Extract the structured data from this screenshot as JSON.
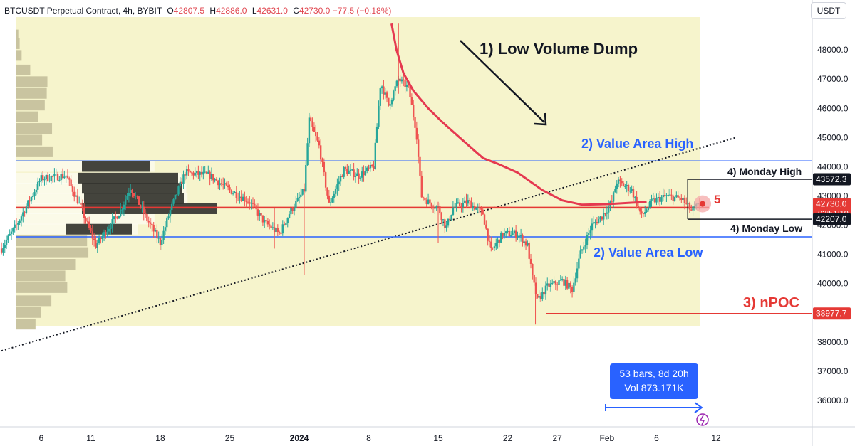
{
  "header": {
    "symbol": "BTCUSDT Perpetual Contract, 4h, BYBIT",
    "open_label": "O",
    "open": "42807.5",
    "high_label": "H",
    "high": "42886.0",
    "low_label": "L",
    "low": "42631.0",
    "close_label": "C",
    "close": "42730.0",
    "change": "−77.5 (−0.18%)"
  },
  "currency": "USDT",
  "colors": {
    "zone": "#f6f4cc",
    "value_area": "#2962ff",
    "poc": "#e53935",
    "vwap": "#e53950",
    "up_candle": "#26a69a",
    "down_candle": "#ef5350",
    "profile_light": "#c9c4a0",
    "profile_dark": "#2a2a24"
  },
  "price_axis": {
    "ticks": [
      "48000.0",
      "47000.0",
      "46000.0",
      "45000.0",
      "44000.0",
      "43000.0",
      "42000.0",
      "41000.0",
      "40000.0",
      "39000.0",
      "38000.0",
      "37000.0",
      "36000.0"
    ],
    "labels": [
      {
        "text": "43572.3",
        "value": 43572.3,
        "style": "dark"
      },
      {
        "text": "42730.0",
        "value": 42730.0,
        "style": "red",
        "sub": "02:51:19"
      },
      {
        "text": "42207.0",
        "value": 42207.0,
        "style": "dark"
      },
      {
        "text": "38977.7",
        "value": 38977.7,
        "style": "red"
      }
    ]
  },
  "time_axis": {
    "ticks": [
      {
        "label": "6",
        "day": -26
      },
      {
        "label": "11",
        "day": -21
      },
      {
        "label": "18",
        "day": -14
      },
      {
        "label": "25",
        "day": -7
      },
      {
        "label": "2024",
        "day": 0
      },
      {
        "label": "8",
        "day": 7
      },
      {
        "label": "15",
        "day": 14
      },
      {
        "label": "22",
        "day": 21
      },
      {
        "label": "27",
        "day": 26
      },
      {
        "label": "Feb",
        "day": 31
      },
      {
        "label": "6",
        "day": 36
      },
      {
        "label": "12",
        "day": 42
      }
    ]
  },
  "annotations": {
    "low_volume_dump": "1) Low Volume Dump",
    "value_area_high": "2) Value Area High",
    "value_area_low": "2) Value Area Low",
    "npoc": "3) nPOC",
    "monday_high": "4) Monday High",
    "monday_low": "4) Monday Low",
    "marker_5": "5"
  },
  "measure": {
    "line1": "53 bars, 8d 20h",
    "line2": "Vol 873.171K"
  },
  "chart_data": {
    "type": "candlestick",
    "title": "BTCUSDT Perpetual Contract, 4h, BYBIT",
    "x_unit": "days from 2024-01-01",
    "x_range": [
      -30,
      46
    ],
    "ylim": [
      35300,
      48800
    ],
    "levels": {
      "value_area_high": 44200,
      "value_area_low": 41600,
      "poc": 42600,
      "npoc": 38977.7,
      "monday_high": 43572.3,
      "monday_low": 42207.0
    },
    "trendline": [
      {
        "day": -30,
        "price": 37700
      },
      {
        "day": 44,
        "price": 45000
      }
    ],
    "vwap": [
      {
        "day": 9.3,
        "price": 48900
      },
      {
        "day": 9.8,
        "price": 48000
      },
      {
        "day": 10.5,
        "price": 47200
      },
      {
        "day": 11.5,
        "price": 46600
      },
      {
        "day": 13,
        "price": 46000
      },
      {
        "day": 14.5,
        "price": 45500
      },
      {
        "day": 16.5,
        "price": 44900
      },
      {
        "day": 18.5,
        "price": 44300
      },
      {
        "day": 20,
        "price": 44100
      },
      {
        "day": 22,
        "price": 43800
      },
      {
        "day": 24.5,
        "price": 43200
      },
      {
        "day": 26.5,
        "price": 42850
      },
      {
        "day": 28.5,
        "price": 42700
      },
      {
        "day": 31,
        "price": 42720
      },
      {
        "day": 33,
        "price": 42760
      },
      {
        "day": 35,
        "price": 42800
      }
    ],
    "price_path": [
      {
        "day": -30,
        "price": 41200
      },
      {
        "day": -28.5,
        "price": 42000
      },
      {
        "day": -26,
        "price": 43600
      },
      {
        "day": -23.5,
        "price": 43700
      },
      {
        "day": -22,
        "price": 42600
      },
      {
        "day": -20.5,
        "price": 41300
      },
      {
        "day": -18,
        "price": 42500
      },
      {
        "day": -17,
        "price": 43300
      },
      {
        "day": -15.5,
        "price": 42300
      },
      {
        "day": -14,
        "price": 41400
      },
      {
        "day": -13,
        "price": 42500
      },
      {
        "day": -11.5,
        "price": 43800
      },
      {
        "day": -9,
        "price": 43700
      },
      {
        "day": -7,
        "price": 43200
      },
      {
        "day": -5,
        "price": 42800
      },
      {
        "day": -3.5,
        "price": 42100
      },
      {
        "day": -2,
        "price": 41700
      },
      {
        "day": -1,
        "price": 42400
      },
      {
        "day": 0.5,
        "price": 43200
      },
      {
        "day": 1,
        "price": 45600
      },
      {
        "day": 2,
        "price": 44700
      },
      {
        "day": 3,
        "price": 42700
      },
      {
        "day": 4.5,
        "price": 43900
      },
      {
        "day": 6,
        "price": 43700
      },
      {
        "day": 7.5,
        "price": 44000
      },
      {
        "day": 8.2,
        "price": 46900
      },
      {
        "day": 9,
        "price": 46100
      },
      {
        "day": 10,
        "price": 47000
      },
      {
        "day": 11,
        "price": 46700
      },
      {
        "day": 11.8,
        "price": 45200
      },
      {
        "day": 12.3,
        "price": 43000
      },
      {
        "day": 13,
        "price": 42800
      },
      {
        "day": 14,
        "price": 42600
      },
      {
        "day": 14.8,
        "price": 41900
      },
      {
        "day": 15.5,
        "price": 42600
      },
      {
        "day": 17,
        "price": 42800
      },
      {
        "day": 18.5,
        "price": 42400
      },
      {
        "day": 19.3,
        "price": 41100
      },
      {
        "day": 20.5,
        "price": 41700
      },
      {
        "day": 22,
        "price": 41700
      },
      {
        "day": 23,
        "price": 41300
      },
      {
        "day": 23.5,
        "price": 40200
      },
      {
        "day": 24,
        "price": 39400
      },
      {
        "day": 25,
        "price": 39900
      },
      {
        "day": 26.5,
        "price": 40100
      },
      {
        "day": 27.5,
        "price": 39800
      },
      {
        "day": 28.3,
        "price": 41000
      },
      {
        "day": 29.5,
        "price": 42000
      },
      {
        "day": 30.5,
        "price": 42300
      },
      {
        "day": 31.5,
        "price": 42800
      },
      {
        "day": 32,
        "price": 43500
      },
      {
        "day": 33.5,
        "price": 43200
      },
      {
        "day": 34.5,
        "price": 42300
      },
      {
        "day": 35.5,
        "price": 42800
      },
      {
        "day": 37,
        "price": 43000
      },
      {
        "day": 38.5,
        "price": 42900
      },
      {
        "day": 39.5,
        "price": 42500
      },
      {
        "day": 40.5,
        "price": 42730
      }
    ],
    "volume_profile": [
      {
        "price": 48500,
        "volume": 4,
        "in_va": false
      },
      {
        "price": 48200,
        "volume": 6,
        "in_va": false
      },
      {
        "price": 47800,
        "volume": 9,
        "in_va": false
      },
      {
        "price": 47300,
        "volume": 22,
        "in_va": false
      },
      {
        "price": 46900,
        "volume": 48,
        "in_va": false
      },
      {
        "price": 46500,
        "volume": 47,
        "in_va": false
      },
      {
        "price": 46100,
        "volume": 44,
        "in_va": false
      },
      {
        "price": 45700,
        "volume": 34,
        "in_va": false
      },
      {
        "price": 45300,
        "volume": 55,
        "in_va": false
      },
      {
        "price": 44900,
        "volume": 40,
        "in_va": false
      },
      {
        "price": 44500,
        "volume": 56,
        "in_va": false
      },
      {
        "price": 44000,
        "volume": 210,
        "in_va": true
      },
      {
        "price": 43600,
        "volume": 250,
        "in_va": true
      },
      {
        "price": 43250,
        "volume": 258,
        "in_va": true
      },
      {
        "price": 42900,
        "volume": 260,
        "in_va": true
      },
      {
        "price": 42550,
        "volume": 305,
        "in_va": true
      },
      {
        "price": 42200,
        "volume": 210,
        "in_va": true
      },
      {
        "price": 41850,
        "volume": 185,
        "in_va": true
      },
      {
        "price": 41450,
        "volume": 108,
        "in_va": false
      },
      {
        "price": 41050,
        "volume": 110,
        "in_va": false
      },
      {
        "price": 40650,
        "volume": 90,
        "in_va": false
      },
      {
        "price": 40250,
        "volume": 75,
        "in_va": false
      },
      {
        "price": 39850,
        "volume": 78,
        "in_va": false
      },
      {
        "price": 39400,
        "volume": 54,
        "in_va": false
      },
      {
        "price": 39000,
        "volume": 38,
        "in_va": false
      },
      {
        "price": 38600,
        "volume": 30,
        "in_va": false
      }
    ]
  }
}
